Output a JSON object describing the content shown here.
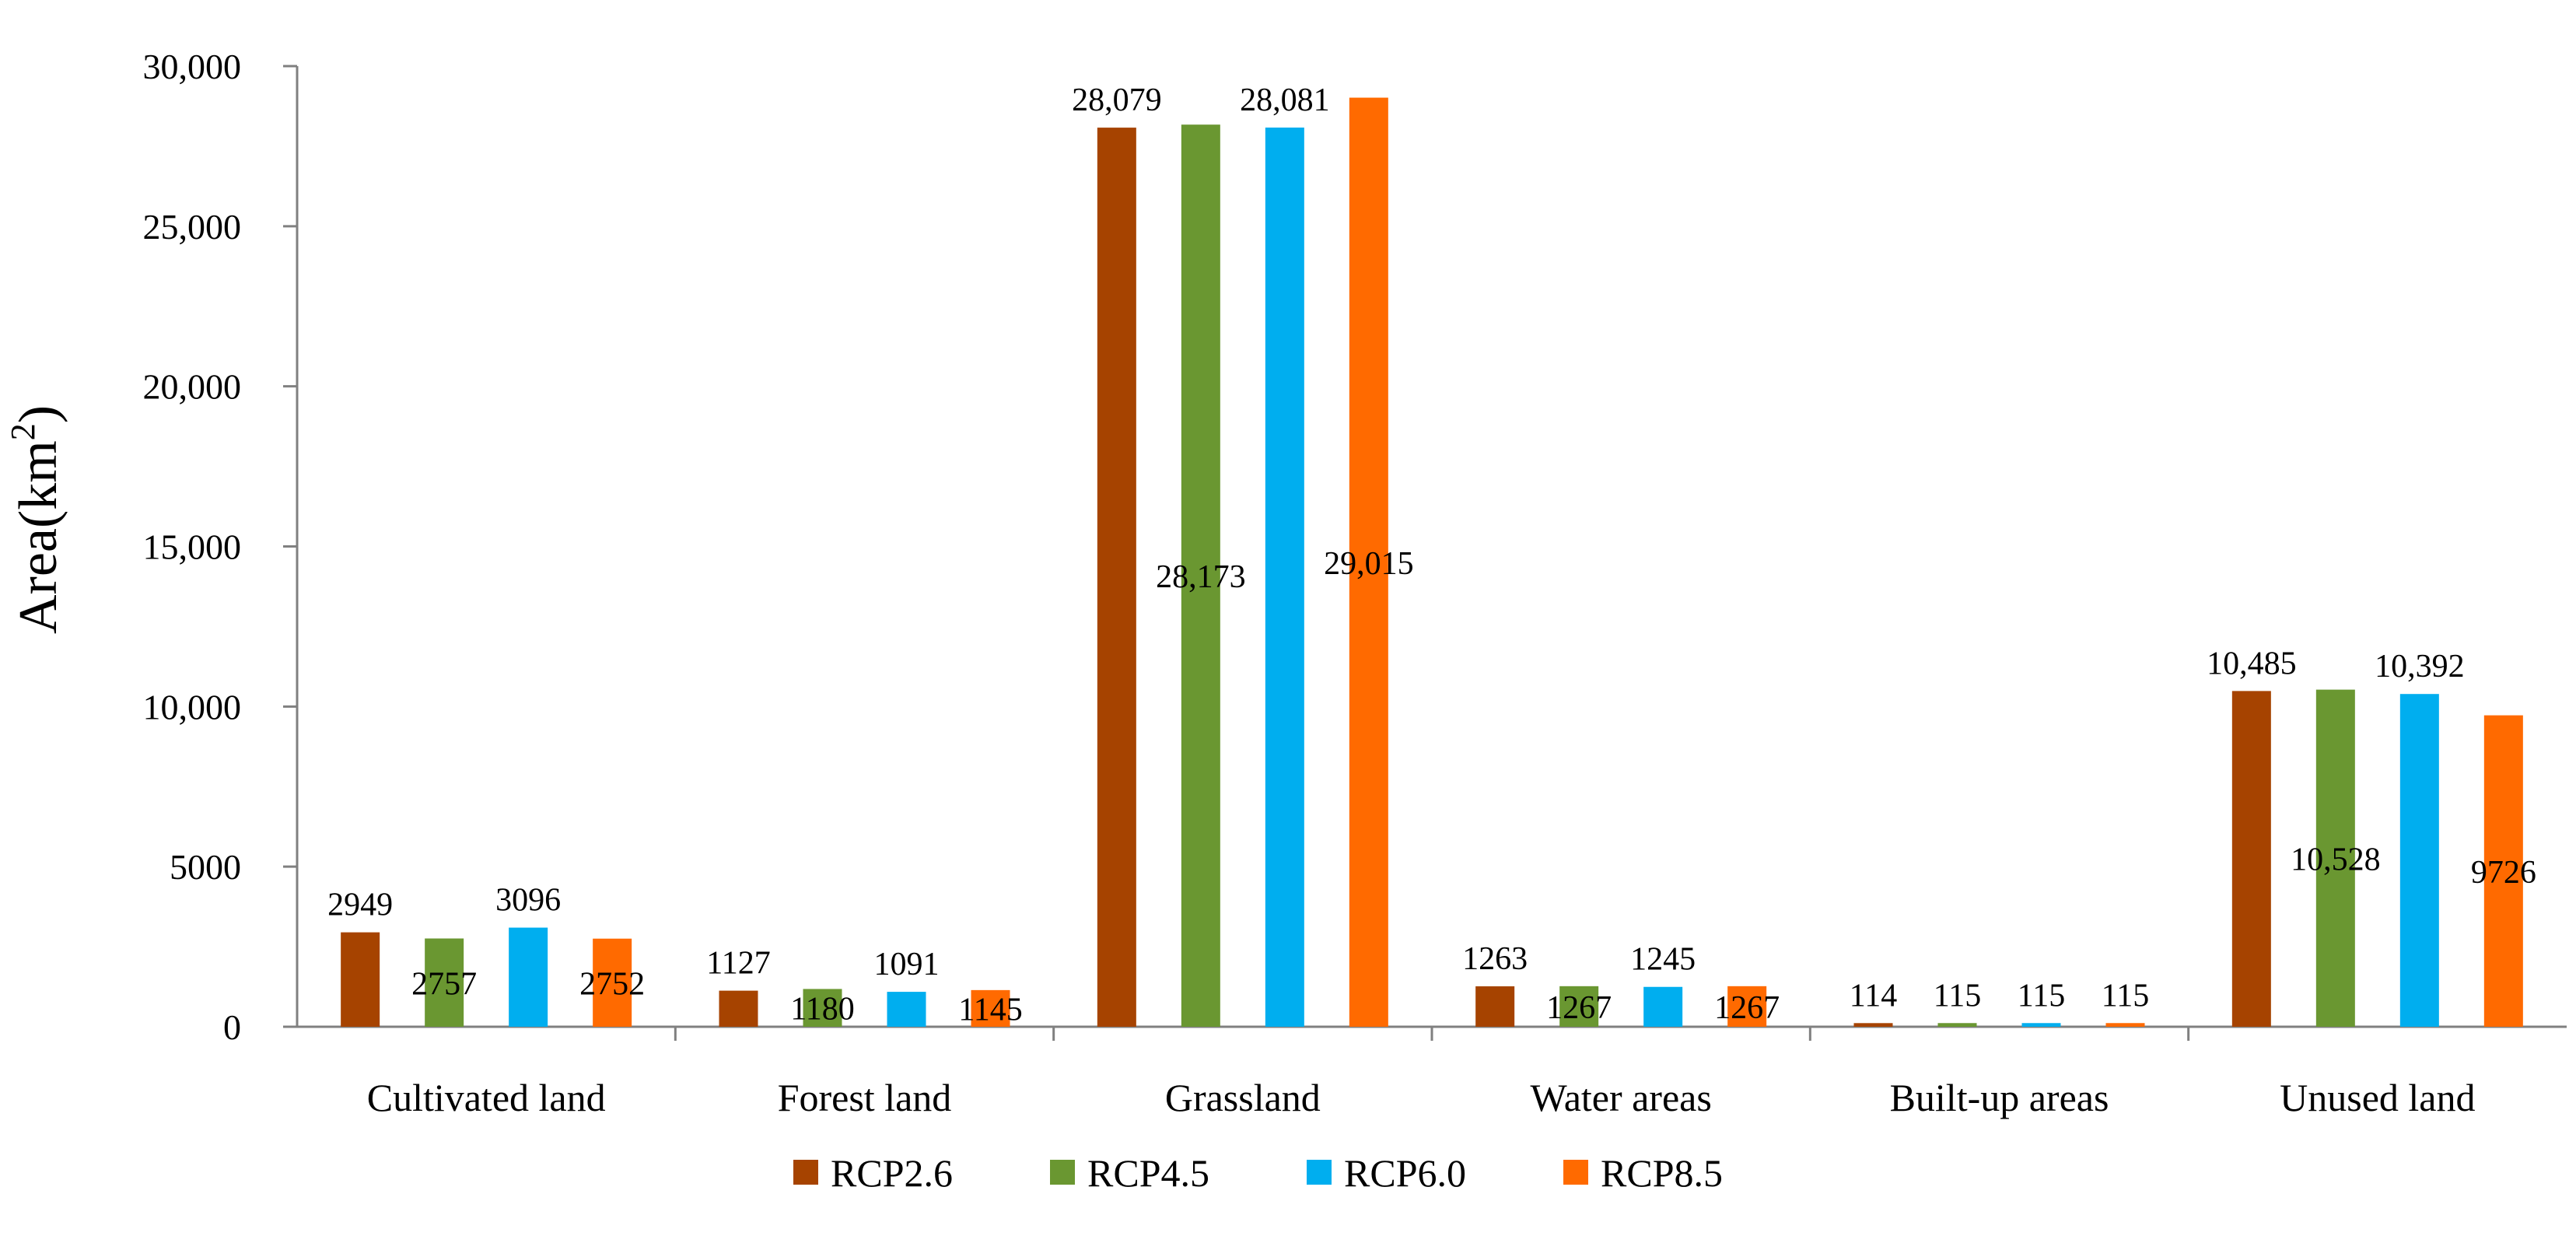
{
  "chart_data": {
    "type": "bar",
    "title": "",
    "xlabel": "",
    "ylabel": "Area(km",
    "ylabel_sup": "2",
    "ylabel_close": ")",
    "ylim": [
      0,
      30000
    ],
    "yticks": [
      0,
      5000,
      10000,
      15000,
      20000,
      25000,
      30000
    ],
    "ytick_labels": [
      "0",
      "5000",
      "10,000",
      "15,000",
      "20,000",
      "25,000",
      "30,000"
    ],
    "grid": false,
    "legend_position": "bottom",
    "categories": [
      "Cultivated land",
      "Forest land",
      "Grassland",
      "Water areas",
      "Built-up areas",
      "Unused land"
    ],
    "series": [
      {
        "name": "RCP2.6",
        "color": "#A64300",
        "values": [
          2949,
          1127,
          28079,
          1263,
          114,
          10485
        ],
        "labels": [
          "2949",
          "1127",
          "28,079",
          "1263",
          "114",
          "10,485"
        ]
      },
      {
        "name": "RCP4.5",
        "color": "#6A9731",
        "values": [
          2757,
          1180,
          28173,
          1267,
          115,
          10528
        ],
        "labels": [
          "2757",
          "1180",
          "28,173",
          "1267",
          "115",
          "10,528"
        ]
      },
      {
        "name": "RCP6.0",
        "color": "#00AEEF",
        "values": [
          3096,
          1091,
          28081,
          1245,
          115,
          10392
        ],
        "labels": [
          "3096",
          "1091",
          "28,081",
          "1245",
          "115",
          "10,392"
        ]
      },
      {
        "name": "RCP8.5",
        "color": "#FF6A00",
        "values": [
          2752,
          1145,
          29015,
          1267,
          115,
          9726
        ],
        "labels": [
          "2752",
          "1145",
          "29,015",
          "1267",
          "115",
          "9726"
        ]
      }
    ],
    "label_placement": [
      [
        "above",
        "mid",
        "above",
        "mid"
      ],
      [
        "above",
        "mid",
        "above",
        "mid"
      ],
      [
        "above",
        "mid",
        "above",
        "mid"
      ],
      [
        "above",
        "mid",
        "above",
        "mid"
      ],
      [
        "above",
        "above",
        "above",
        "above"
      ],
      [
        "above",
        "mid",
        "above",
        "mid"
      ]
    ]
  }
}
